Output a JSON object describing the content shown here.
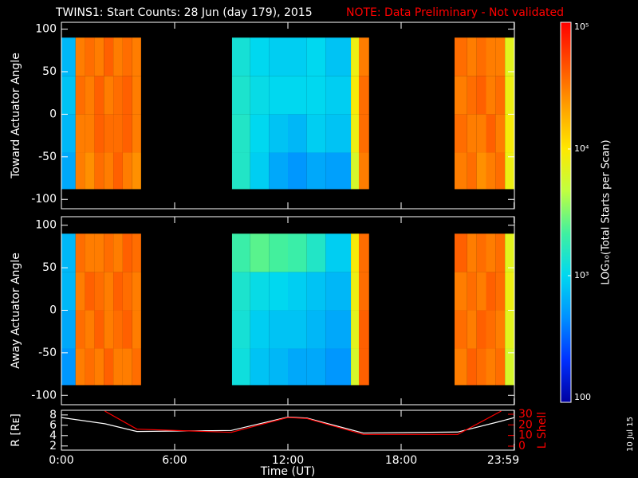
{
  "chart_data": [
    {
      "type": "heatmap",
      "title": "TWINS1: Start Counts: 28 Jun (day 179), 2015",
      "note": "NOTE: Data Preliminary - Not validated",
      "ylabel": "Toward Actuator Angle",
      "ylim": [
        -111,
        108
      ],
      "yticks": [
        -100,
        -50,
        0,
        50,
        100
      ],
      "x_edges": [
        0,
        0.75,
        1.25,
        1.75,
        2.25,
        2.75,
        3.25,
        3.75,
        4.22,
        9.04,
        10,
        11,
        12,
        13,
        14,
        15.34,
        15.76,
        16.3,
        20.83,
        21.5,
        22,
        22.5,
        23,
        23.5,
        24
      ],
      "y_edges": [
        -88,
        -45,
        0,
        45,
        90
      ],
      "z": [
        [
          600,
          30000,
          25000,
          35000,
          30000,
          40000,
          30000,
          25000,
          null,
          1500,
          900,
          600,
          500,
          600,
          550,
          6000,
          30000,
          null,
          30000,
          35000,
          25000,
          30000,
          35000,
          8000
        ],
        [
          700,
          30000,
          30000,
          40000,
          35000,
          35000,
          40000,
          30000,
          null,
          1500,
          1000,
          800,
          700,
          900,
          800,
          8000,
          35000,
          null,
          35000,
          30000,
          30000,
          40000,
          30000,
          9000
        ],
        [
          800,
          35000,
          30000,
          40000,
          30000,
          35000,
          40000,
          30000,
          null,
          1400,
          1100,
          1000,
          1000,
          1000,
          900,
          9000,
          35000,
          null,
          30000,
          35000,
          40000,
          30000,
          35000,
          8000
        ],
        [
          700,
          30000,
          35000,
          30000,
          40000,
          30000,
          35000,
          30000,
          null,
          1300,
          1000,
          900,
          900,
          1000,
          800,
          8000,
          30000,
          null,
          35000,
          30000,
          35000,
          30000,
          30000,
          7000
        ]
      ],
      "colorbar": {
        "label": "LOG₁₀(Total Starts per Scan)",
        "lim": [
          100,
          100000
        ],
        "log": true,
        "ticks": [
          {
            "value": 100000,
            "label": "10⁵"
          },
          {
            "value": 10000,
            "label": "10⁴"
          },
          {
            "value": 1000,
            "label": "10³"
          },
          100
        ],
        "colormap": [
          "#0000a0",
          "#0030ff",
          "#0090ff",
          "#00d8f0",
          "#40f0a0",
          "#c0ff40",
          "#ffe800",
          "#ffa000",
          "#ff5000",
          "#ff0000"
        ]
      }
    },
    {
      "type": "heatmap",
      "ylabel": "Away Actuator Angle",
      "ylim": [
        -111,
        110
      ],
      "yticks": [
        -100,
        -50,
        0,
        50,
        100
      ],
      "x_edges": [
        0,
        0.75,
        1.25,
        1.75,
        2.25,
        2.75,
        3.25,
        3.75,
        4.22,
        9.04,
        10,
        11,
        12,
        13,
        14,
        15.34,
        15.76,
        16.3,
        20.83,
        21.5,
        22,
        22.5,
        23,
        23.5,
        24
      ],
      "y_edges": [
        -88,
        -45,
        0,
        45,
        90
      ],
      "z": [
        [
          500,
          30000,
          35000,
          30000,
          40000,
          30000,
          30000,
          35000,
          null,
          1200,
          800,
          700,
          600,
          600,
          500,
          6000,
          40000,
          null,
          30000,
          40000,
          35000,
          30000,
          35000,
          6000
        ],
        [
          600,
          35000,
          30000,
          40000,
          30000,
          35000,
          40000,
          30000,
          null,
          1300,
          900,
          800,
          800,
          700,
          600,
          7000,
          40000,
          null,
          35000,
          30000,
          40000,
          35000,
          30000,
          7000
        ],
        [
          700,
          30000,
          40000,
          35000,
          30000,
          40000,
          35000,
          30000,
          null,
          1400,
          1100,
          1000,
          900,
          800,
          700,
          8000,
          35000,
          null,
          30000,
          35000,
          30000,
          40000,
          35000,
          8000
        ],
        [
          700,
          35000,
          30000,
          30000,
          35000,
          30000,
          40000,
          35000,
          null,
          2000,
          2500,
          2200,
          2000,
          1500,
          900,
          9000,
          35000,
          null,
          40000,
          30000,
          35000,
          30000,
          35000,
          7000
        ]
      ]
    },
    {
      "type": "line",
      "xlabel": "Time (UT)",
      "ylabel": "R [Rᴇ]",
      "y2label": "L Shell",
      "annotation": "10 Jul 15",
      "xlim": [
        0,
        24
      ],
      "xticks": [
        {
          "value": 0,
          "label": "0:00"
        },
        {
          "value": 6,
          "label": "6:00"
        },
        {
          "value": 12,
          "label": "12:00"
        },
        {
          "value": 18,
          "label": "18:00"
        },
        {
          "value": 23.983,
          "label": "23:59"
        }
      ],
      "ylim": [
        1.2,
        8.9
      ],
      "yticks": [
        2,
        4,
        6,
        8
      ],
      "y2lim": [
        -3.75,
        33.75
      ],
      "y2ticks": [
        0,
        10,
        20,
        30
      ],
      "y2color": "#ff0000",
      "x": [
        0,
        2.3,
        4,
        9,
        12,
        13,
        16,
        21,
        23.3,
        24
      ],
      "series": [
        {
          "color": "#ffffff",
          "values": [
            7.5,
            6.3,
            4.8,
            5,
            7.6,
            7.4,
            4.5,
            4.7,
            6.8,
            7.5
          ]
        },
        {
          "color": "#ff0000",
          "axis": "y2",
          "values": [
            null,
            33,
            16,
            13,
            27,
            26,
            11,
            11,
            33,
            null
          ]
        }
      ]
    }
  ]
}
